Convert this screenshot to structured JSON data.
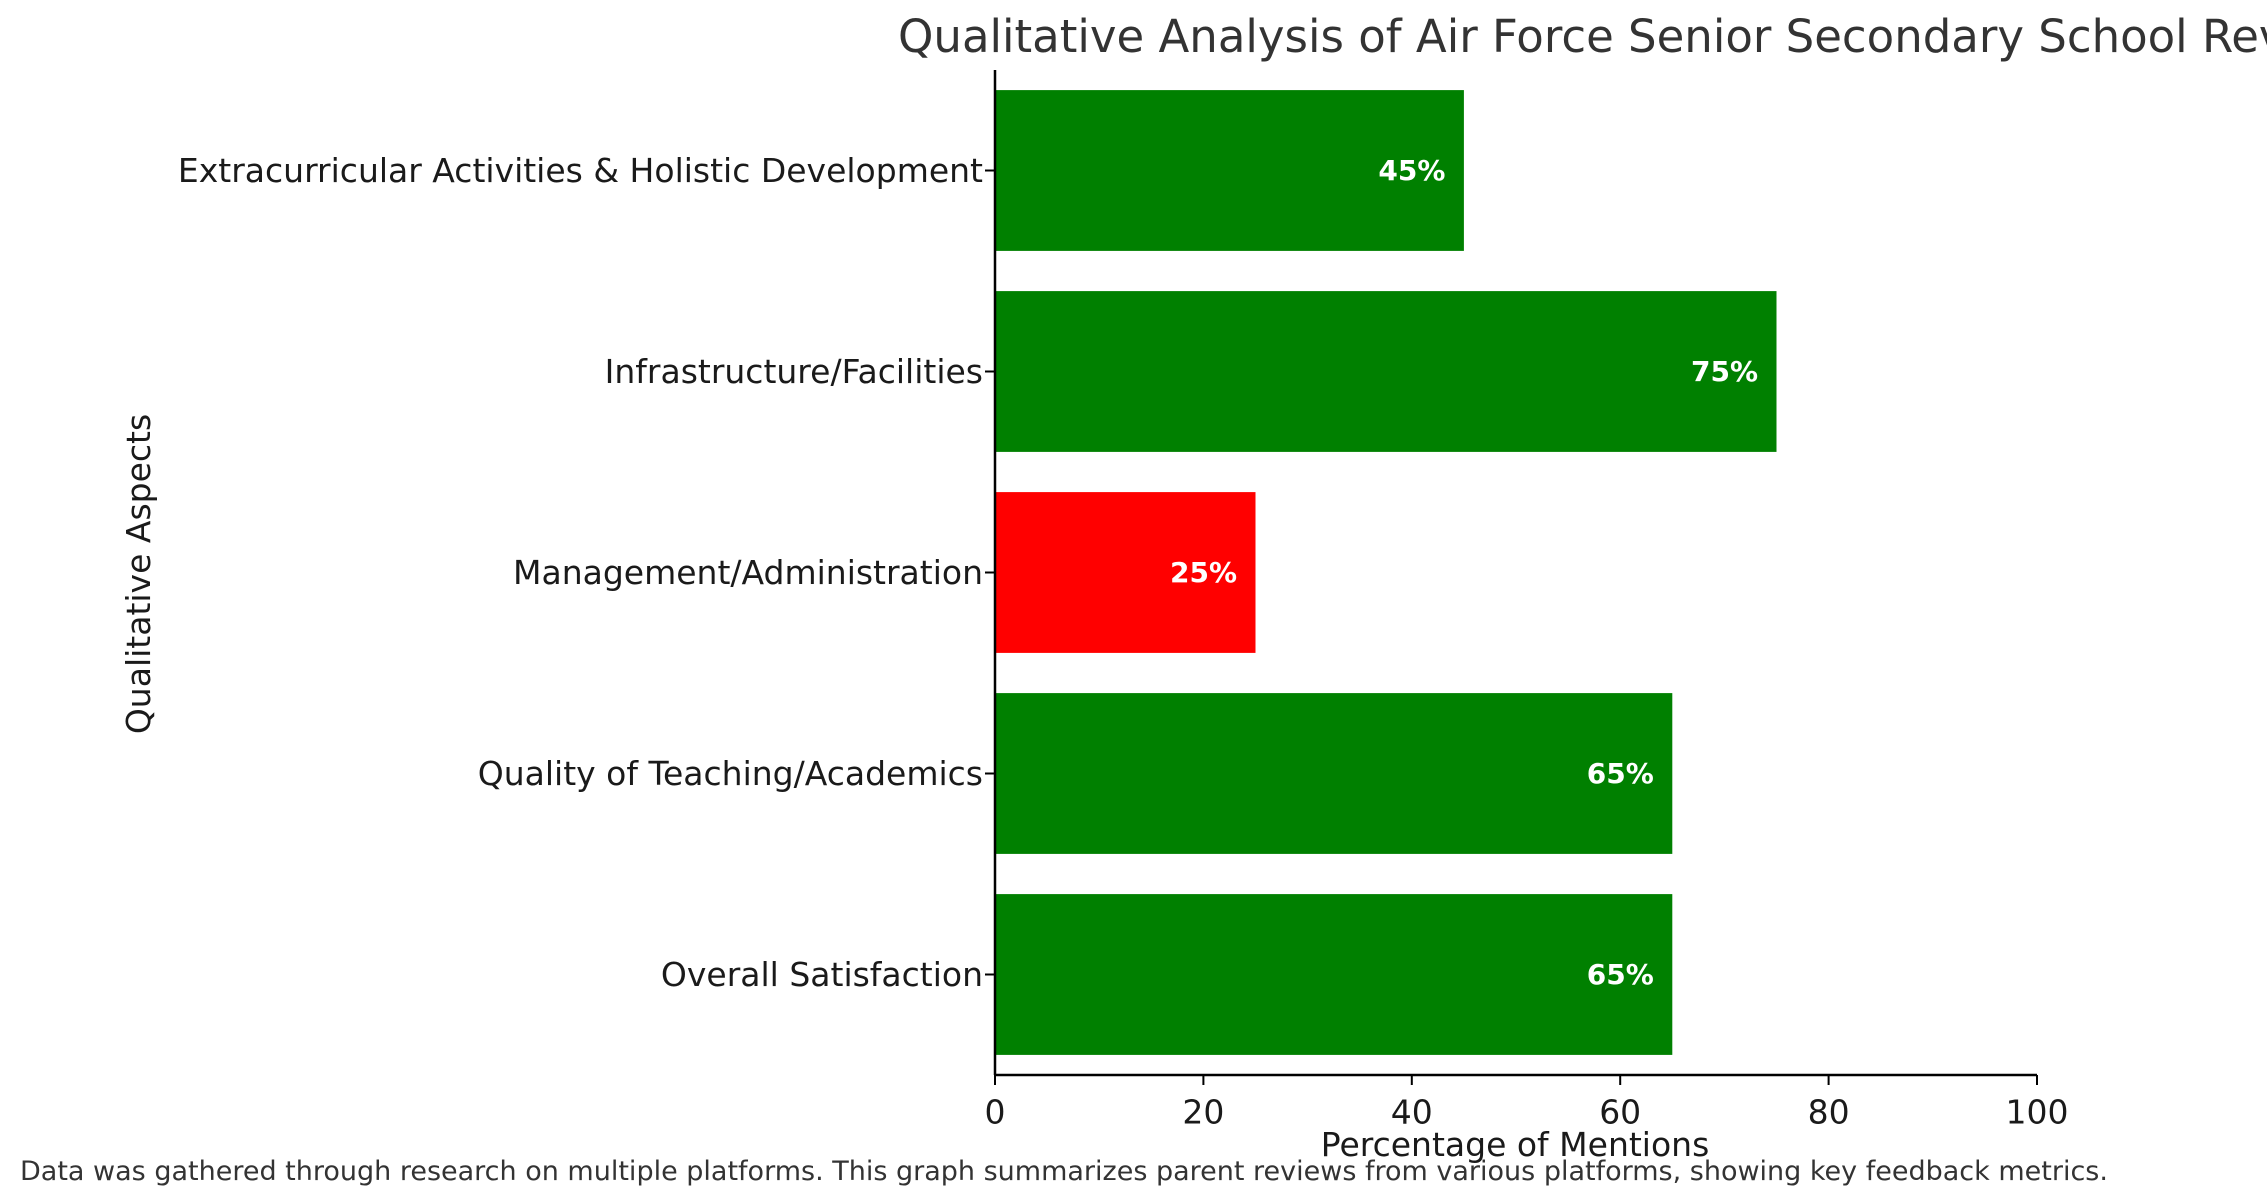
{
  "chart_data": {
    "type": "bar",
    "orientation": "horizontal",
    "title": "Qualitative Analysis of Air Force Senior Secondary School Reviews",
    "xlabel": "Percentage of Mentions",
    "ylabel": "Qualitative Aspects",
    "xlim": [
      0,
      100
    ],
    "xticks": [
      "0",
      "20",
      "40",
      "60",
      "80",
      "100"
    ],
    "categories": [
      "Overall Satisfaction",
      "Quality of Teaching/Academics",
      "Management/Administration",
      "Infrastructure/Facilities",
      "Extracurricular Activities & Holistic Development"
    ],
    "values": [
      65,
      65,
      25,
      75,
      45
    ],
    "value_labels": [
      "65%",
      "65%",
      "25%",
      "75%",
      "45%"
    ],
    "bar_colors": [
      "#008000",
      "#008000",
      "#ff0000",
      "#008000",
      "#008000"
    ],
    "grid": false,
    "legend": "none"
  },
  "footnote": "Data was gathered through research on multiple platforms. This graph summarizes parent reviews from various platforms, showing key feedback metrics."
}
